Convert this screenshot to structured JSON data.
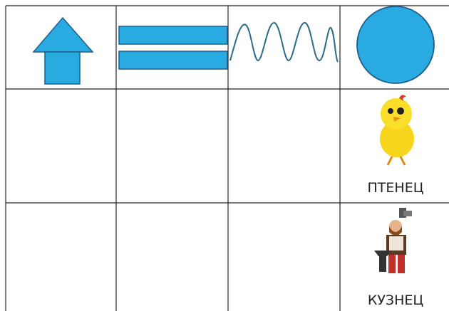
{
  "cards": [
    {
      "label": "ПТЕНЕЦ"
    },
    {
      "label": "КУЗНЕЦ"
    }
  ]
}
